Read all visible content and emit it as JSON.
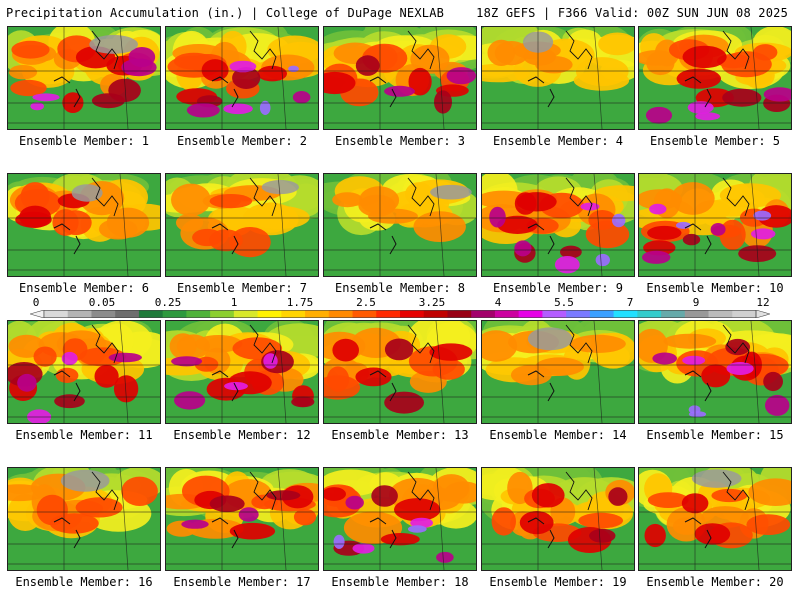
{
  "header": {
    "title_left": "Precipitation Accumulation (in.) | College of DuPage NEXLAB",
    "title_right": "18Z GEFS | F366 Valid: 00Z SUN JUN 08 2025"
  },
  "colorbar": {
    "tick_labels": [
      "0",
      "0.05",
      "0.25",
      "1",
      "1.75",
      "2.5",
      "3.25",
      "4",
      "5.5",
      "7",
      "9",
      "12"
    ],
    "colors": [
      "#d9d9d9",
      "#b3b3b3",
      "#8c8c8c",
      "#6e6e6e",
      "#1f7a3a",
      "#2e9a3e",
      "#4fb23a",
      "#8ccf2e",
      "#d8e82b",
      "#fff200",
      "#ffd400",
      "#ffae00",
      "#ff8a00",
      "#ff5a00",
      "#ff2a00",
      "#e60000",
      "#c00000",
      "#990015",
      "#a3006b",
      "#cc00a0",
      "#e600e6",
      "#b35cff",
      "#7a7aff",
      "#3aa0ff",
      "#22e0ff",
      "#33cccc",
      "#66aaaa",
      "#999999",
      "#bbbbbb",
      "#d0d0d0"
    ]
  },
  "members": [
    {
      "label": "Ensemble Member: 1",
      "intensity": 0.75
    },
    {
      "label": "Ensemble Member: 2",
      "intensity": 0.8
    },
    {
      "label": "Ensemble Member: 3",
      "intensity": 0.65
    },
    {
      "label": "Ensemble Member: 4",
      "intensity": 0.25
    },
    {
      "label": "Ensemble Member: 5",
      "intensity": 0.7
    },
    {
      "label": "Ensemble Member: 6",
      "intensity": 0.45
    },
    {
      "label": "Ensemble Member: 7",
      "intensity": 0.4
    },
    {
      "label": "Ensemble Member: 8",
      "intensity": 0.3
    },
    {
      "label": "Ensemble Member: 9",
      "intensity": 0.95
    },
    {
      "label": "Ensemble Member: 10",
      "intensity": 0.85
    },
    {
      "label": "Ensemble Member: 11",
      "intensity": 0.7
    },
    {
      "label": "Ensemble Member: 12",
      "intensity": 0.75
    },
    {
      "label": "Ensemble Member: 13",
      "intensity": 0.5
    },
    {
      "label": "Ensemble Member: 14",
      "intensity": 0.3
    },
    {
      "label": "Ensemble Member: 15",
      "intensity": 0.8
    },
    {
      "label": "Ensemble Member: 16",
      "intensity": 0.4
    },
    {
      "label": "Ensemble Member: 17",
      "intensity": 0.6
    },
    {
      "label": "Ensemble Member: 18",
      "intensity": 0.95
    },
    {
      "label": "Ensemble Member: 19",
      "intensity": 0.55
    },
    {
      "label": "Ensemble Member: 20",
      "intensity": 0.45
    }
  ]
}
